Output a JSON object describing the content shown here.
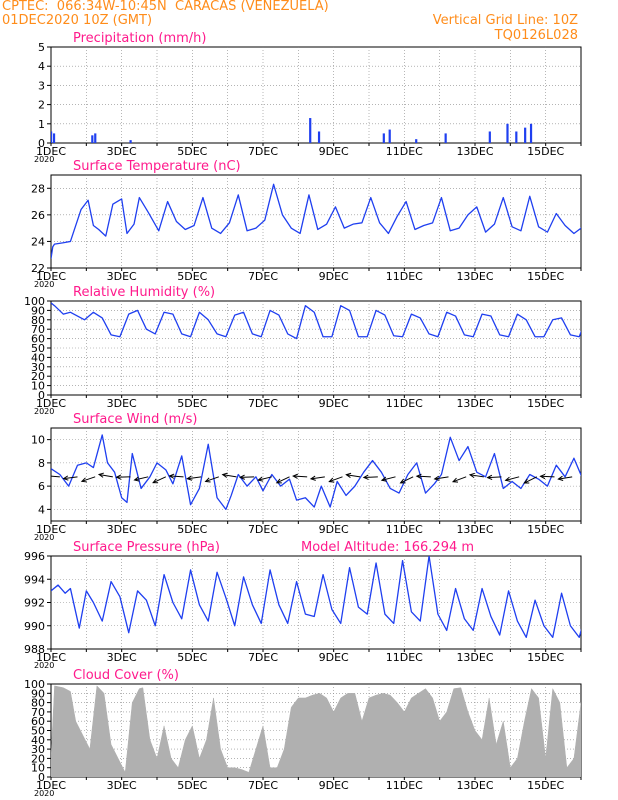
{
  "header": {
    "line1_left": "CPTEC:  066:34W-10:45N  CARACAS (VENEZUELA)",
    "line2_left": "01DEC2020 10Z (GMT)",
    "line2_right": "Vertical Grid Line: 10Z",
    "line3_right": "TQ0126L028"
  },
  "x_ticks": [
    "1DEC",
    "3DEC",
    "5DEC",
    "7DEC",
    "9DEC",
    "11DEC",
    "13DEC",
    "15DEC"
  ],
  "year_fragment": "2020",
  "colors": {
    "title": "#ff1a8c",
    "header": "#ff8c1a",
    "series": "#1f3ff0",
    "cloud": "#b0b0b0",
    "wind_arrow": "#000000"
  },
  "chart_data": [
    {
      "type": "bar",
      "title": "Precipitation (mm/h)",
      "ylim": [
        0,
        5
      ],
      "yticks": [
        0,
        1,
        2,
        3,
        4,
        5
      ],
      "x": [
        "1DEC 10Z",
        "1DEC 12Z",
        "2DEC 14Z",
        "2DEC 16Z",
        "3DEC 16Z",
        "8DEC 18Z",
        "9DEC 0Z",
        "10DEC 20Z",
        "11DEC 0Z",
        "11DEC 18Z",
        "12DEC 14Z",
        "13DEC 20Z",
        "14DEC 8Z",
        "14DEC 14Z",
        "14DEC 20Z",
        "15DEC 0Z"
      ],
      "values": [
        0.6,
        0.5,
        0.4,
        0.5,
        0.15,
        1.3,
        0.6,
        0.5,
        0.7,
        0.2,
        0.5,
        0.6,
        1.0,
        0.6,
        0.8,
        1.0
      ]
    },
    {
      "type": "line",
      "title": "Surface Temperature (nC)",
      "ylim": [
        22,
        29
      ],
      "yticks": [
        22,
        24,
        26,
        28
      ],
      "x_days": [
        0,
        0.05,
        0.1,
        0.35,
        0.55,
        0.65,
        0.85,
        1.05,
        1.2,
        1.35,
        1.55,
        1.75,
        2.0,
        2.15,
        2.35,
        2.5,
        2.75,
        3.05,
        3.3,
        3.55,
        3.8,
        4.05,
        4.3,
        4.55,
        4.8,
        5.05,
        5.3,
        5.55,
        5.8,
        6.05,
        6.3,
        6.55,
        6.8,
        7.05,
        7.3,
        7.55,
        7.8,
        8.05,
        8.3,
        8.55,
        8.8,
        9.05,
        9.3,
        9.55,
        9.8,
        10.05,
        10.3,
        10.55,
        10.8,
        11.05,
        11.3,
        11.55,
        11.8,
        12.05,
        12.3,
        12.55,
        12.8,
        13.05,
        13.3,
        13.55,
        13.8,
        14.05,
        14.3,
        14.55,
        14.8,
        15.05,
        15.3,
        15.55,
        15.8,
        16.0
      ],
      "values": [
        22.7,
        23.6,
        23.8,
        23.9,
        24.0,
        24.8,
        26.4,
        27.1,
        25.2,
        24.9,
        24.4,
        26.8,
        27.2,
        24.6,
        25.3,
        27.3,
        26.2,
        24.8,
        27.0,
        25.5,
        24.9,
        25.2,
        27.3,
        25.0,
        24.6,
        25.4,
        27.5,
        24.8,
        25.0,
        25.6,
        28.3,
        26.0,
        25.0,
        24.6,
        27.5,
        24.9,
        25.3,
        26.6,
        25.0,
        25.3,
        25.4,
        27.3,
        25.4,
        24.6,
        25.9,
        27.0,
        24.9,
        25.2,
        25.4,
        27.3,
        24.8,
        25.0,
        26.0,
        26.6,
        24.7,
        25.3,
        27.3,
        25.1,
        24.8,
        27.4,
        25.1,
        24.7,
        26.1,
        25.2,
        24.6,
        25.1,
        27.1,
        24.8,
        24.5,
        26.6
      ]
    },
    {
      "type": "line",
      "title": "Relative Humidity (%)",
      "ylim": [
        0,
        100
      ],
      "yticks": [
        0,
        10,
        20,
        30,
        40,
        50,
        60,
        70,
        80,
        90,
        100
      ],
      "x_days": [
        0,
        0.1,
        0.35,
        0.55,
        0.75,
        0.95,
        1.2,
        1.45,
        1.7,
        1.95,
        2.2,
        2.45,
        2.7,
        2.95,
        3.2,
        3.45,
        3.7,
        3.95,
        4.2,
        4.45,
        4.7,
        4.95,
        5.2,
        5.45,
        5.7,
        5.95,
        6.2,
        6.45,
        6.7,
        6.95,
        7.2,
        7.45,
        7.7,
        7.95,
        8.2,
        8.45,
        8.7,
        8.95,
        9.2,
        9.45,
        9.7,
        9.95,
        10.2,
        10.45,
        10.7,
        10.95,
        11.2,
        11.45,
        11.7,
        11.95,
        12.2,
        12.45,
        12.7,
        12.95,
        13.2,
        13.45,
        13.7,
        13.95,
        14.2,
        14.45,
        14.7,
        14.95,
        15.2,
        15.45,
        15.7,
        16.0
      ],
      "values": [
        98,
        95,
        86,
        88,
        84,
        80,
        88,
        82,
        64,
        62,
        86,
        90,
        70,
        65,
        88,
        86,
        65,
        62,
        88,
        80,
        65,
        62,
        85,
        88,
        65,
        62,
        90,
        85,
        65,
        60,
        95,
        88,
        62,
        62,
        95,
        90,
        62,
        62,
        90,
        85,
        63,
        62,
        86,
        82,
        65,
        62,
        88,
        84,
        64,
        62,
        86,
        84,
        64,
        62,
        86,
        80,
        62,
        62,
        80,
        82,
        64,
        62,
        86,
        88,
        64,
        78
      ]
    },
    {
      "type": "line",
      "title": "Surface Wind (m/s)",
      "ylim": [
        3,
        11
      ],
      "yticks": [
        4,
        6,
        8,
        10
      ],
      "x_days": [
        0,
        0.25,
        0.5,
        0.75,
        1.0,
        1.2,
        1.45,
        1.6,
        1.8,
        2.0,
        2.15,
        2.3,
        2.55,
        2.8,
        3.0,
        3.25,
        3.45,
        3.7,
        3.95,
        4.2,
        4.45,
        4.7,
        4.95,
        5.1,
        5.3,
        5.55,
        5.8,
        6.0,
        6.25,
        6.5,
        6.75,
        6.95,
        7.2,
        7.45,
        7.65,
        7.9,
        8.1,
        8.35,
        8.6,
        8.85,
        9.1,
        9.35,
        9.6,
        9.85,
        10.1,
        10.35,
        10.6,
        10.85,
        11.05,
        11.3,
        11.55,
        11.8,
        12.05,
        12.3,
        12.55,
        12.8,
        13.05,
        13.3,
        13.55,
        13.8,
        14.05,
        14.3,
        14.55,
        14.8,
        15.05,
        15.3,
        15.55,
        15.8,
        16.0
      ],
      "values": [
        7.5,
        7.0,
        6.0,
        7.8,
        8.0,
        7.6,
        10.4,
        8.0,
        7.2,
        5.0,
        4.6,
        8.8,
        5.8,
        6.8,
        8.0,
        7.4,
        6.2,
        8.6,
        4.4,
        5.8,
        9.6,
        5.0,
        4.0,
        5.2,
        7.0,
        6.0,
        6.8,
        5.6,
        7.0,
        6.0,
        6.6,
        4.8,
        5.0,
        4.2,
        6.0,
        4.2,
        6.4,
        5.2,
        6.0,
        7.2,
        8.2,
        7.2,
        5.8,
        5.4,
        7.0,
        8.0,
        5.4,
        6.2,
        7.0,
        10.2,
        8.2,
        9.4,
        7.2,
        6.8,
        8.8,
        5.8,
        6.4,
        5.8,
        7.0,
        6.6,
        6.0,
        7.8,
        6.8,
        8.4,
        6.6,
        5.2,
        4.2,
        6.0,
        7.0
      ]
    },
    {
      "type": "line",
      "title": "Surface Pressure (hPa)",
      "subtitle": "Model Altitude: 166.294  m",
      "ylim": [
        988,
        996
      ],
      "yticks": [
        988,
        990,
        992,
        994,
        996
      ],
      "x_days": [
        0,
        0.2,
        0.4,
        0.55,
        0.8,
        1.0,
        1.2,
        1.45,
        1.7,
        1.95,
        2.2,
        2.45,
        2.7,
        2.95,
        3.2,
        3.45,
        3.7,
        3.95,
        4.2,
        4.45,
        4.7,
        4.95,
        5.2,
        5.45,
        5.7,
        5.95,
        6.2,
        6.45,
        6.7,
        6.95,
        7.2,
        7.45,
        7.7,
        7.95,
        8.2,
        8.45,
        8.7,
        8.95,
        9.2,
        9.45,
        9.7,
        9.95,
        10.2,
        10.45,
        10.7,
        10.95,
        11.2,
        11.45,
        11.7,
        11.95,
        12.2,
        12.45,
        12.7,
        12.95,
        13.2,
        13.45,
        13.7,
        13.95,
        14.2,
        14.45,
        14.7,
        14.95,
        15.2,
        15.45,
        15.7,
        16.0
      ],
      "values": [
        993.0,
        993.5,
        992.8,
        993.2,
        989.8,
        993.0,
        992.0,
        990.4,
        993.8,
        992.5,
        989.4,
        993.0,
        992.2,
        990.0,
        994.4,
        992.0,
        990.6,
        994.8,
        991.8,
        990.4,
        994.6,
        992.4,
        990.0,
        994.2,
        991.8,
        990.2,
        994.8,
        991.8,
        990.2,
        993.8,
        991.0,
        990.8,
        994.4,
        991.4,
        990.2,
        995.0,
        991.6,
        991.0,
        995.4,
        991.0,
        990.2,
        995.6,
        991.2,
        990.4,
        996.0,
        991.0,
        989.6,
        993.2,
        990.6,
        989.6,
        993.2,
        990.8,
        989.2,
        993.0,
        990.4,
        989.0,
        992.2,
        990.0,
        989.0,
        992.8,
        990.0,
        989.0,
        991.8,
        989.8,
        988.4,
        990.0
      ]
    },
    {
      "type": "area",
      "title": "Cloud Cover (%)",
      "ylim": [
        0,
        100
      ],
      "yticks": [
        0,
        10,
        20,
        30,
        40,
        50,
        60,
        70,
        80,
        90,
        100
      ],
      "x_days": [
        0,
        0.1,
        0.35,
        0.55,
        0.7,
        0.9,
        1.1,
        1.3,
        1.5,
        1.7,
        1.9,
        2.1,
        2.3,
        2.5,
        2.6,
        2.8,
        3.0,
        3.2,
        3.4,
        3.6,
        3.8,
        4.0,
        4.2,
        4.4,
        4.6,
        4.8,
        5.0,
        5.2,
        5.4,
        5.6,
        5.8,
        6.0,
        6.2,
        6.4,
        6.6,
        6.8,
        7.0,
        7.2,
        7.4,
        7.6,
        7.8,
        8.0,
        8.2,
        8.4,
        8.6,
        8.8,
        9.0,
        9.2,
        9.4,
        9.6,
        9.8,
        10.0,
        10.2,
        10.4,
        10.6,
        10.8,
        11.0,
        11.2,
        11.4,
        11.6,
        11.8,
        12.0,
        12.2,
        12.4,
        12.6,
        12.8,
        13.0,
        13.2,
        13.4,
        13.6,
        13.8,
        14.0,
        14.2,
        14.4,
        14.6,
        14.8,
        15.0,
        15.2,
        15.4,
        15.6,
        15.8,
        16.0
      ],
      "values": [
        20,
        98,
        96,
        92,
        60,
        45,
        30,
        98,
        90,
        35,
        20,
        5,
        80,
        95,
        96,
        40,
        20,
        55,
        20,
        10,
        40,
        55,
        20,
        40,
        85,
        30,
        10,
        10,
        8,
        5,
        30,
        55,
        10,
        10,
        30,
        75,
        85,
        85,
        88,
        90,
        85,
        70,
        85,
        90,
        90,
        60,
        85,
        88,
        90,
        88,
        80,
        70,
        85,
        90,
        95,
        85,
        60,
        70,
        95,
        96,
        70,
        50,
        40,
        85,
        35,
        60,
        10,
        20,
        60,
        95,
        85,
        20,
        95,
        80,
        10,
        20,
        80,
        50,
        30,
        5,
        10,
        15
      ]
    }
  ]
}
